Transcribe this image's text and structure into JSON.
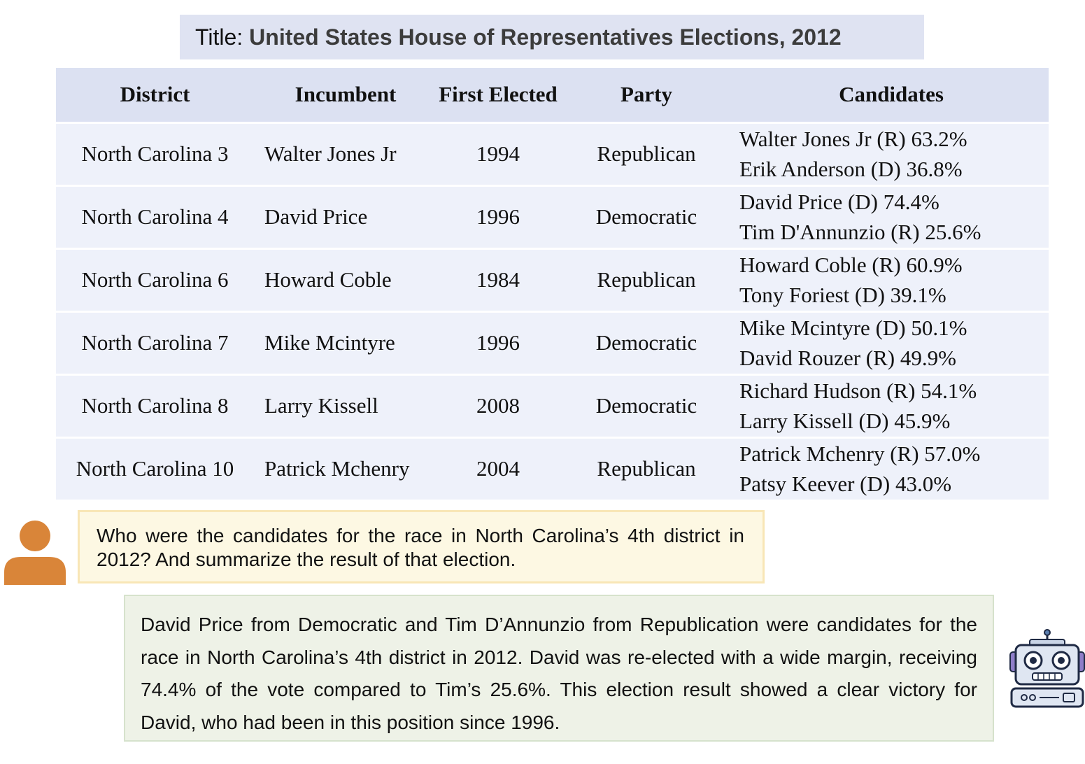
{
  "title": {
    "prefix": "Title:",
    "text": "United States House of Representatives Elections, 2012"
  },
  "table": {
    "columns": [
      "District",
      "Incumbent",
      "First Elected",
      "Party",
      "Candidates"
    ],
    "rows": [
      {
        "district": "North Carolina 3",
        "incumbent": "Walter Jones Jr",
        "first_elected": "1994",
        "party": "Republican",
        "candidates": [
          "Walter Jones Jr (R) 63.2%",
          "Erik Anderson (D) 36.8%"
        ]
      },
      {
        "district": "North Carolina 4",
        "incumbent": "David Price",
        "first_elected": "1996",
        "party": "Democratic",
        "candidates": [
          "David Price (D) 74.4%",
          "Tim D'Annunzio (R) 25.6%"
        ]
      },
      {
        "district": "North Carolina 6",
        "incumbent": "Howard Coble",
        "first_elected": "1984",
        "party": "Republican",
        "candidates": [
          "Howard Coble (R) 60.9%",
          "Tony Foriest (D) 39.1%"
        ]
      },
      {
        "district": "North Carolina 7",
        "incumbent": "Mike Mcintyre",
        "first_elected": "1996",
        "party": "Democratic",
        "candidates": [
          "Mike Mcintyre (D) 50.1%",
          "David Rouzer (R) 49.9%"
        ]
      },
      {
        "district": "North Carolina 8",
        "incumbent": "Larry Kissell",
        "first_elected": "2008",
        "party": "Democratic",
        "candidates": [
          "Richard Hudson (R) 54.1%",
          "Larry Kissell (D) 45.9%"
        ]
      },
      {
        "district": "North Carolina 10",
        "incumbent": "Patrick Mchenry",
        "first_elected": "2004",
        "party": "Republican",
        "candidates": [
          "Patrick Mchenry (R) 57.0%",
          "Patsy Keever (D) 43.0%"
        ]
      }
    ]
  },
  "question": "Who were the candidates for the race in North Carolina’s 4th district in 2012? And summarize the result of that election.",
  "answer": "David Price from Democratic and Tim D’Annunzio from Republication were candidates for the race in North Carolina’s 4th district in 2012. David was re-elected with a wide margin, receiving 74.4% of the vote compared to Tim’s 25.6%. This election result showed a clear victory for David, who had been in this position since 1996.",
  "icons": {
    "user": "user-avatar-icon",
    "robot": "robot-icon"
  },
  "colors": {
    "title_bg": "#dfe3f2",
    "header_bg": "#dce1f2",
    "row_bg": "#eef1fa",
    "question_bg": "#fdf8e3",
    "question_border": "#f8e6b6",
    "answer_bg": "#eef2e7",
    "answer_border": "#d6e2cc",
    "user_icon": "#d98539"
  }
}
